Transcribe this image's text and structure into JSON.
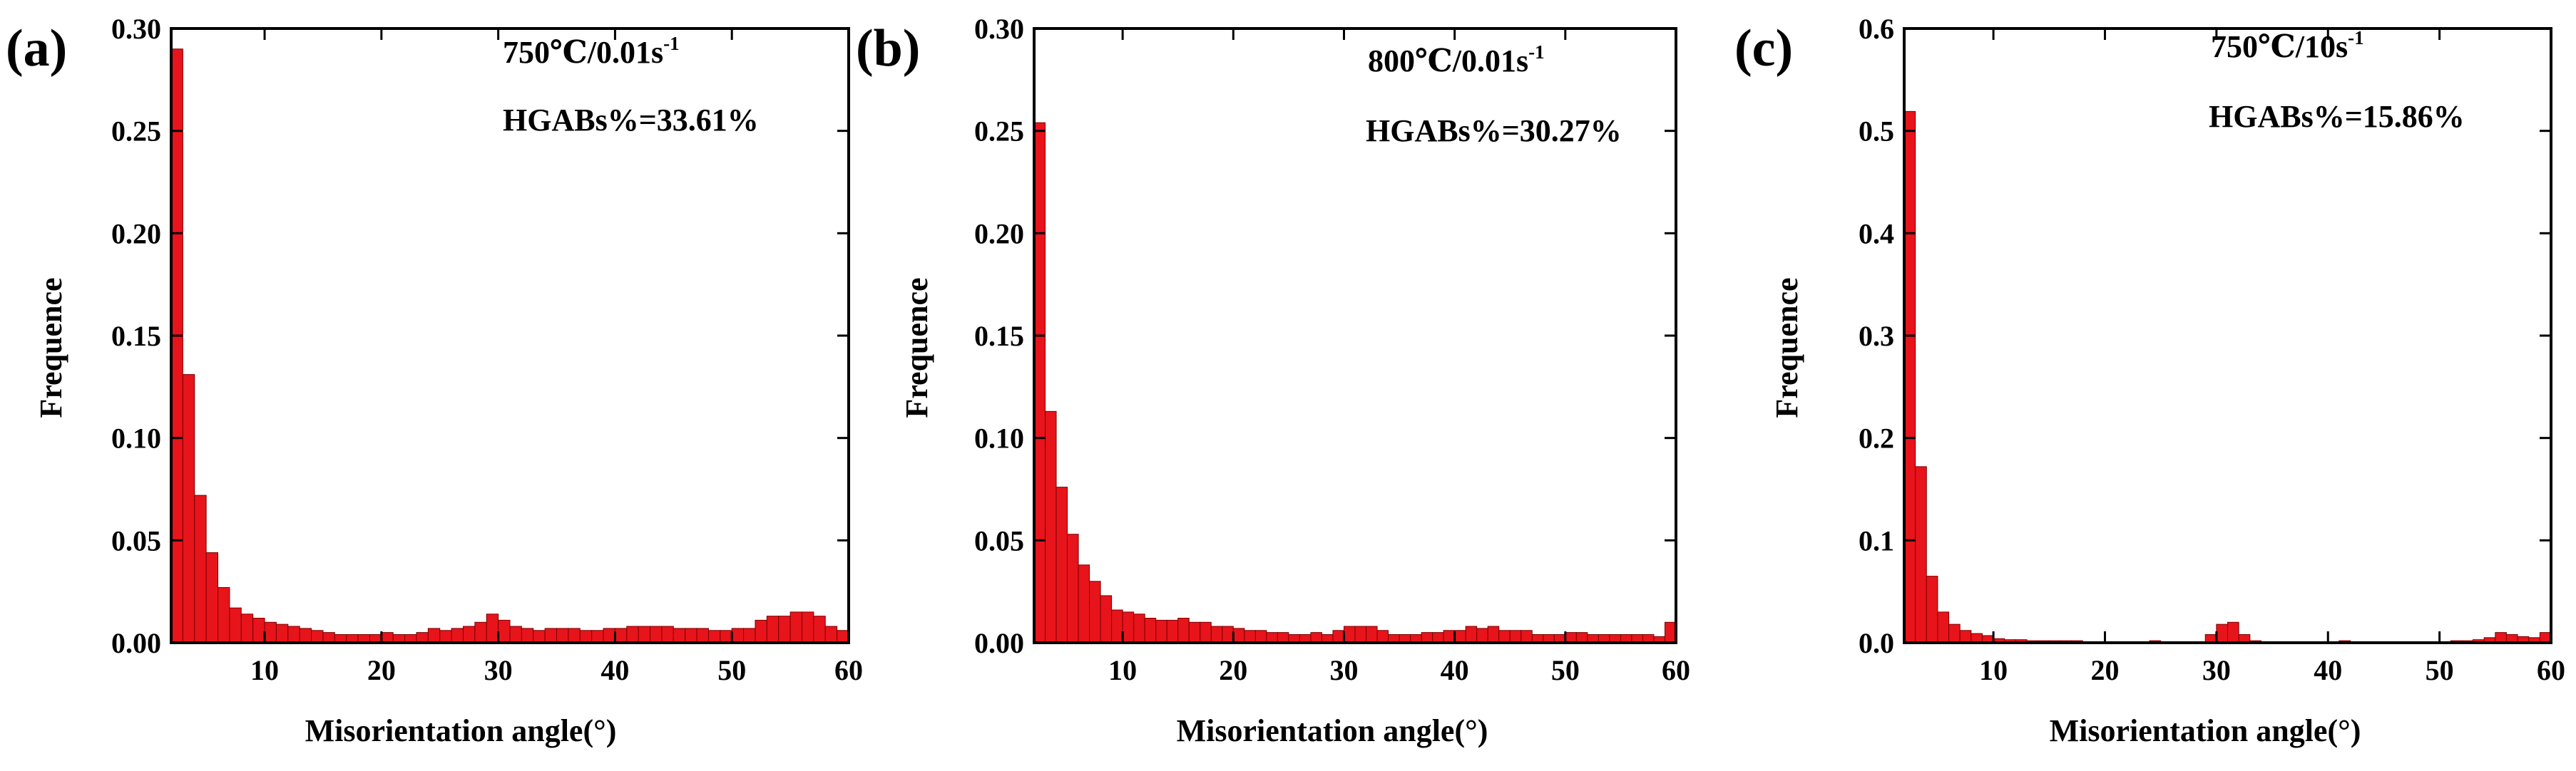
{
  "figure": {
    "panels": [
      {
        "letter": "(a)",
        "temp": "750℃",
        "rate": "/0.01s",
        "exp": "-1",
        "hgab": "HGABs%=33.61%"
      },
      {
        "letter": "(b)",
        "temp": "800℃",
        "rate": "/0.01s",
        "exp": "-1",
        "hgab": "HGABs%=30.27%"
      },
      {
        "letter": "(c)",
        "temp": "750℃",
        "rate": "/10s",
        "exp": "-1",
        "hgab": "HGABs%=15.86%"
      }
    ]
  },
  "chart_data": [
    {
      "type": "bar",
      "title": "750℃/0.01s-1",
      "annotation": "HGABs%=33.61%",
      "xlabel": "Misorientation angle(°)",
      "ylabel": "Frequence",
      "xlim": [
        2,
        60
      ],
      "ylim": [
        0,
        0.3
      ],
      "xticks": [
        10,
        20,
        30,
        40,
        50,
        60
      ],
      "xtick_labels": [
        "10",
        "20",
        "30",
        "40",
        "50",
        "60"
      ],
      "yticks": [
        0,
        0.05,
        0.1,
        0.15,
        0.2,
        0.25,
        0.3
      ],
      "ytick_labels": [
        "0.00",
        "0.05",
        "0.10",
        "0.15",
        "0.20",
        "0.25",
        "0.30"
      ],
      "bar_color": "#e8141b",
      "bin_width": 1,
      "x": [
        2,
        3,
        4,
        5,
        6,
        7,
        8,
        9,
        10,
        11,
        12,
        13,
        14,
        15,
        16,
        17,
        18,
        19,
        20,
        21,
        22,
        23,
        24,
        25,
        26,
        27,
        28,
        29,
        30,
        31,
        32,
        33,
        34,
        35,
        36,
        37,
        38,
        39,
        40,
        41,
        42,
        43,
        44,
        45,
        46,
        47,
        48,
        49,
        50,
        51,
        52,
        53,
        54,
        55,
        56,
        57,
        58,
        59
      ],
      "values": [
        0.29,
        0.131,
        0.072,
        0.044,
        0.027,
        0.017,
        0.014,
        0.012,
        0.01,
        0.009,
        0.008,
        0.007,
        0.006,
        0.005,
        0.004,
        0.004,
        0.004,
        0.004,
        0.005,
        0.004,
        0.004,
        0.005,
        0.007,
        0.006,
        0.007,
        0.008,
        0.01,
        0.014,
        0.011,
        0.008,
        0.007,
        0.006,
        0.007,
        0.007,
        0.007,
        0.006,
        0.006,
        0.007,
        0.007,
        0.008,
        0.008,
        0.008,
        0.008,
        0.007,
        0.007,
        0.007,
        0.006,
        0.006,
        0.007,
        0.007,
        0.011,
        0.013,
        0.013,
        0.015,
        0.015,
        0.013,
        0.008,
        0.006
      ]
    },
    {
      "type": "bar",
      "title": "800℃/0.01s-1",
      "annotation": "HGABs%=30.27%",
      "xlabel": "Misorientation angle(°)",
      "ylabel": "Frequence",
      "xlim": [
        2,
        60
      ],
      "ylim": [
        0,
        0.3
      ],
      "xticks": [
        10,
        20,
        30,
        40,
        50,
        60
      ],
      "xtick_labels": [
        "10",
        "20",
        "30",
        "40",
        "50",
        "60"
      ],
      "yticks": [
        0,
        0.05,
        0.1,
        0.15,
        0.2,
        0.25,
        0.3
      ],
      "ytick_labels": [
        "0.00",
        "0.05",
        "0.10",
        "0.15",
        "0.20",
        "0.25",
        "0.30"
      ],
      "bar_color": "#e8141b",
      "bin_width": 1,
      "x": [
        2,
        3,
        4,
        5,
        6,
        7,
        8,
        9,
        10,
        11,
        12,
        13,
        14,
        15,
        16,
        17,
        18,
        19,
        20,
        21,
        22,
        23,
        24,
        25,
        26,
        27,
        28,
        29,
        30,
        31,
        32,
        33,
        34,
        35,
        36,
        37,
        38,
        39,
        40,
        41,
        42,
        43,
        44,
        45,
        46,
        47,
        48,
        49,
        50,
        51,
        52,
        53,
        54,
        55,
        56,
        57,
        58,
        59
      ],
      "values": [
        0.254,
        0.113,
        0.076,
        0.053,
        0.038,
        0.03,
        0.023,
        0.016,
        0.015,
        0.014,
        0.012,
        0.011,
        0.011,
        0.012,
        0.01,
        0.01,
        0.008,
        0.008,
        0.007,
        0.006,
        0.006,
        0.005,
        0.005,
        0.004,
        0.004,
        0.005,
        0.004,
        0.006,
        0.008,
        0.008,
        0.008,
        0.006,
        0.004,
        0.004,
        0.004,
        0.005,
        0.005,
        0.006,
        0.006,
        0.008,
        0.007,
        0.008,
        0.006,
        0.006,
        0.006,
        0.004,
        0.004,
        0.004,
        0.005,
        0.005,
        0.004,
        0.004,
        0.004,
        0.004,
        0.004,
        0.004,
        0.003,
        0.01
      ]
    },
    {
      "type": "bar",
      "title": "750℃/10s-1",
      "annotation": "HGABs%=15.86%",
      "xlabel": "Misorientation angle(°)",
      "ylabel": "Frequence",
      "xlim": [
        2,
        60
      ],
      "ylim": [
        0,
        0.6
      ],
      "xticks": [
        10,
        20,
        30,
        40,
        50,
        60
      ],
      "xtick_labels": [
        "10",
        "20",
        "30",
        "40",
        "50",
        "60"
      ],
      "yticks": [
        0,
        0.1,
        0.2,
        0.3,
        0.4,
        0.5,
        0.6
      ],
      "ytick_labels": [
        "0.0",
        "0.1",
        "0.2",
        "0.3",
        "0.4",
        "0.5",
        "0.6"
      ],
      "bar_color": "#e8141b",
      "bin_width": 1,
      "x": [
        2,
        3,
        4,
        5,
        6,
        7,
        8,
        9,
        10,
        11,
        12,
        13,
        14,
        15,
        16,
        17,
        18,
        19,
        20,
        21,
        22,
        23,
        24,
        25,
        26,
        27,
        28,
        29,
        30,
        31,
        32,
        33,
        34,
        35,
        36,
        37,
        38,
        39,
        40,
        41,
        42,
        43,
        44,
        45,
        46,
        47,
        48,
        49,
        50,
        51,
        52,
        53,
        54,
        55,
        56,
        57,
        58,
        59
      ],
      "values": [
        0.519,
        0.172,
        0.065,
        0.03,
        0.018,
        0.012,
        0.009,
        0.007,
        0.004,
        0.003,
        0.003,
        0.002,
        0.002,
        0.002,
        0.002,
        0.002,
        0.001,
        0.001,
        0.001,
        0.001,
        0.001,
        0.001,
        0.002,
        0.001,
        0.001,
        0.001,
        0.001,
        0.008,
        0.018,
        0.02,
        0.008,
        0.002,
        0.001,
        0.001,
        0.001,
        0.001,
        0.001,
        0.001,
        0.001,
        0.002,
        0.001,
        0.001,
        0.001,
        0.001,
        0.001,
        0.001,
        0.001,
        0.001,
        0.001,
        0.002,
        0.002,
        0.003,
        0.005,
        0.01,
        0.008,
        0.006,
        0.005,
        0.01
      ]
    }
  ]
}
